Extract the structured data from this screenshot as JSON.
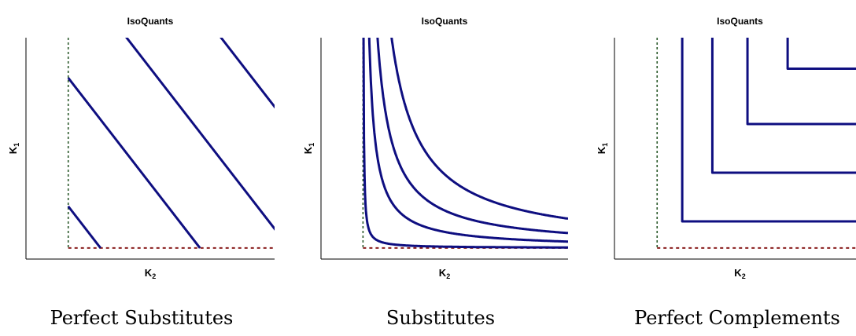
{
  "chart_data": [
    {
      "type": "line",
      "title": "IsoQuants",
      "xlabel": "K",
      "xlabel_sub": "2",
      "ylabel": "K",
      "ylabel_sub": "1",
      "caption": "Perfect Substitutes",
      "xlim": [
        0,
        10
      ],
      "ylim": [
        0,
        10
      ],
      "reference_lines": {
        "vertical_x": 1.7,
        "horizontal_y": 0.5
      },
      "curves": [
        {
          "kind": "linear",
          "a": 3.0
        },
        {
          "kind": "linear",
          "a": 7.0
        },
        {
          "kind": "linear",
          "a": 10.6
        },
        {
          "kind": "linear",
          "a": 14.4
        }
      ]
    },
    {
      "type": "line",
      "title": "IsoQuants",
      "xlabel": "K",
      "xlabel_sub": "2",
      "ylabel": "K",
      "ylabel_sub": "1",
      "caption": "Substitutes",
      "xlim": [
        0,
        10
      ],
      "ylim": [
        0,
        10
      ],
      "reference_lines": {
        "vertical_x": 1.7,
        "horizontal_y": 0.5
      },
      "curves": [
        {
          "kind": "hyperbola",
          "c": 0.2
        },
        {
          "kind": "hyperbola",
          "c": 2.4
        },
        {
          "kind": "hyperbola",
          "c": 5.6
        },
        {
          "kind": "hyperbola",
          "c": 11.0
        }
      ]
    },
    {
      "type": "line",
      "title": "IsoQuants",
      "xlabel": "K",
      "xlabel_sub": "2",
      "ylabel": "K",
      "ylabel_sub": "1",
      "caption": "Perfect Complements",
      "xlim": [
        0,
        10
      ],
      "ylim": [
        0,
        10
      ],
      "reference_lines": {
        "vertical_x": 1.7,
        "horizontal_y": 0.5
      },
      "curves": [
        {
          "kind": "leontief",
          "corner": [
            2.7,
            1.7
          ]
        },
        {
          "kind": "leontief",
          "corner": [
            3.9,
            3.9
          ]
        },
        {
          "kind": "leontief",
          "corner": [
            5.3,
            6.1
          ]
        },
        {
          "kind": "leontief",
          "corner": [
            6.9,
            8.6
          ]
        }
      ]
    }
  ]
}
